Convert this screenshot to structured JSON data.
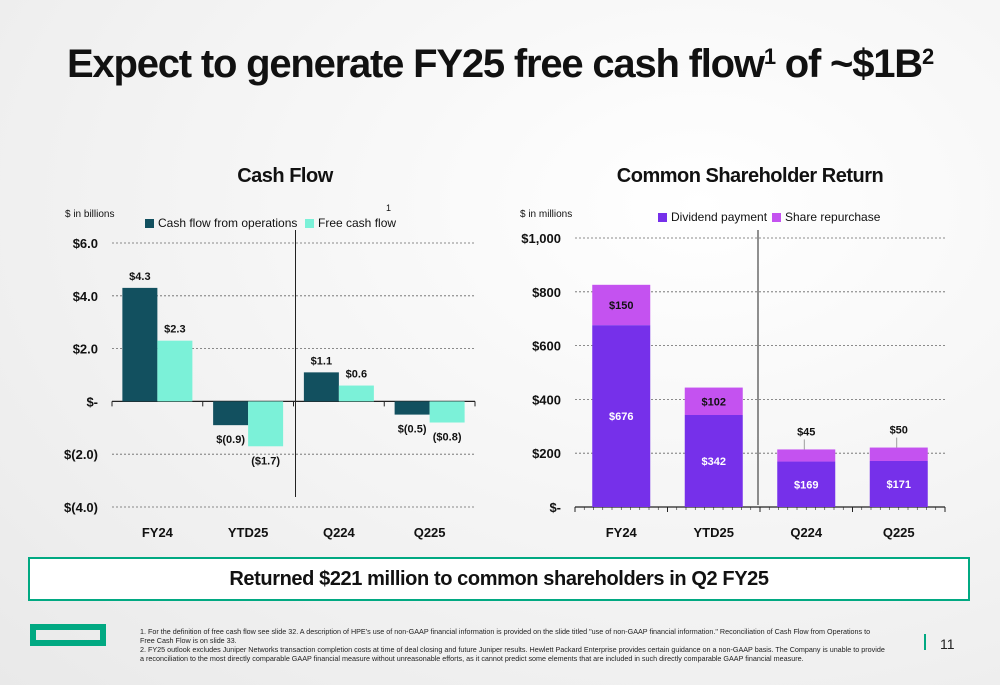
{
  "title": {
    "main": "Expect to generate FY25 free cash flow",
    "sup1": "1",
    "mid": " of ~$1B",
    "sup2": "2"
  },
  "colors": {
    "ops": "#12505f",
    "fcf": "#7bf1d8",
    "dividend": "#7630ea",
    "repurchase": "#c452f0",
    "accent": "#01a982"
  },
  "chart_data": [
    {
      "type": "bar",
      "title": "Cash Flow",
      "unit_label": "$ in billions",
      "marker": "1",
      "categories": [
        "FY24",
        "YTD25",
        "Q224",
        "Q225"
      ],
      "series": [
        {
          "name": "Cash flow from operations",
          "values": [
            4.3,
            -0.9,
            1.1,
            -0.5
          ],
          "labels": [
            "$4.3",
            "$(0.9)",
            "$1.1",
            "$(0.5)"
          ]
        },
        {
          "name": "Free cash flow",
          "values": [
            2.3,
            -1.7,
            0.6,
            -0.8
          ],
          "labels": [
            "$2.3",
            "($1.7)",
            "$0.6",
            "($0.8)"
          ]
        }
      ],
      "ylim": [
        -4,
        6
      ],
      "yticks": [
        6,
        4,
        2,
        0,
        -2,
        -4
      ],
      "ytick_labels": [
        "$6.0",
        "$4.0",
        "$2.0",
        "$-",
        "$(2.0)",
        "$(4.0)"
      ],
      "grid": true,
      "legend": "top"
    },
    {
      "type": "bar",
      "stacked": true,
      "title": "Common Shareholder Return",
      "unit_label": "$ in millions",
      "categories": [
        "FY24",
        "YTD25",
        "Q224",
        "Q225"
      ],
      "series": [
        {
          "name": "Dividend payment",
          "values": [
            676,
            342,
            169,
            171
          ],
          "labels": [
            "$676",
            "$342",
            "$169",
            "$171"
          ]
        },
        {
          "name": "Share repurchase",
          "values": [
            150,
            102,
            45,
            50
          ],
          "labels": [
            "$150",
            "$102",
            "$45",
            "$50"
          ]
        }
      ],
      "ylim": [
        0,
        1000
      ],
      "yticks": [
        1000,
        800,
        600,
        400,
        200,
        0
      ],
      "ytick_labels": [
        "$1,000",
        "$800",
        "$600",
        "$400",
        "$200",
        "$-"
      ],
      "grid": true,
      "legend": "top"
    }
  ],
  "banner": "Returned $221 million to common shareholders in Q2 FY25",
  "footnotes": [
    "1.  For the definition of free cash flow see slide 32. A description of HPE's use of non-GAAP financial information is provided on the slide titled \"use of non-GAAP financial information.\" Reconciliation of Cash Flow from Operations to",
    "      Free Cash Flow is on slide 33.",
    "2.  FY25 outlook excludes Juniper Networks transaction completion costs at time of deal closing and future Juniper results. Hewlett Packard Enterprise provides certain guidance on a non-GAAP basis. The Company is unable to provide",
    "      a reconciliation to the most directly comparable GAAP financial measure without unreasonable efforts, as it cannot predict some elements that are included in such directly comparable GAAP financial measure."
  ],
  "page_number": "11"
}
